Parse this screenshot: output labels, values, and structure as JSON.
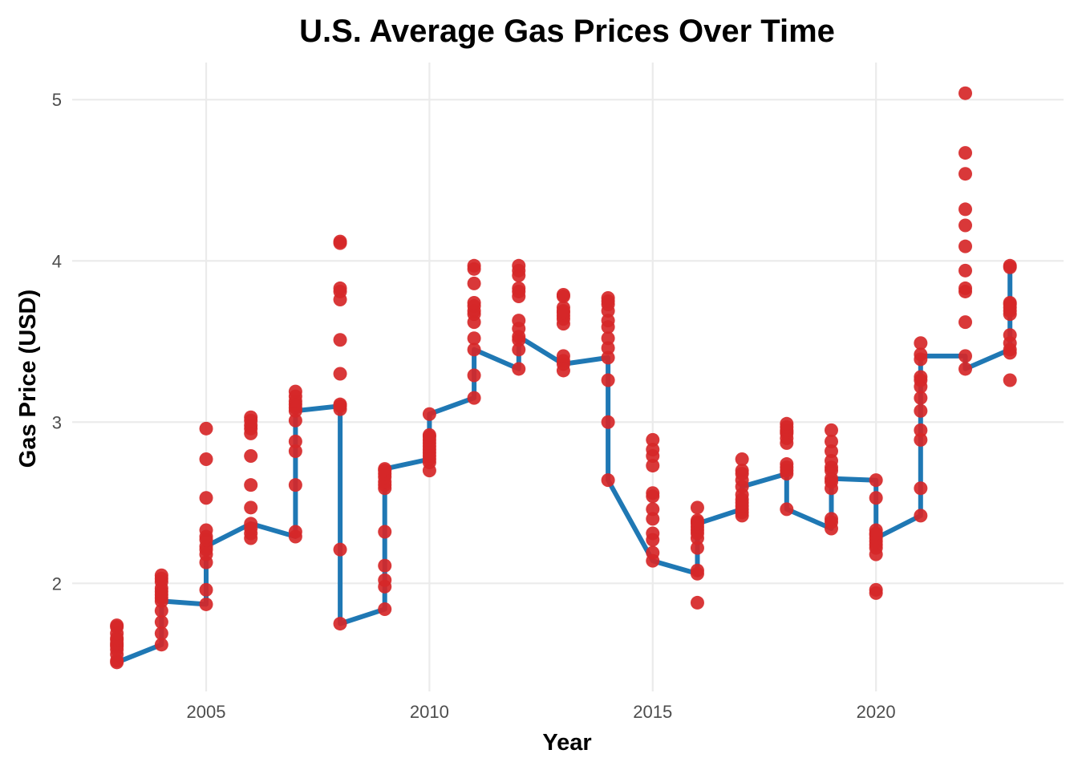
{
  "chart_data": {
    "type": "line",
    "title": "U.S. Average Gas Prices Over Time",
    "xlabel": "Year",
    "ylabel": "Gas Price (USD)",
    "xlim": [
      2002.0,
      2024.2
    ],
    "ylim": [
      1.33,
      5.23
    ],
    "xticks": [
      2005,
      2010,
      2015,
      2020
    ],
    "yticks": [
      2,
      3,
      4,
      5
    ],
    "grid": true,
    "legend": "none",
    "line_color": "#1f78b4",
    "point_color": "#d62728",
    "line_path": [
      [
        2003,
        1.51
      ],
      [
        2004,
        1.62
      ],
      [
        2004,
        1.89
      ],
      [
        2005,
        1.87
      ],
      [
        2005,
        2.23
      ],
      [
        2006,
        2.37
      ],
      [
        2007,
        2.29
      ],
      [
        2007,
        3.07
      ],
      [
        2008,
        3.1
      ],
      [
        2008,
        1.75
      ],
      [
        2009,
        1.84
      ],
      [
        2009,
        2.71
      ],
      [
        2010,
        2.77
      ],
      [
        2010,
        3.05
      ],
      [
        2011,
        3.15
      ],
      [
        2011,
        3.45
      ],
      [
        2012,
        3.33
      ],
      [
        2012,
        3.53
      ],
      [
        2013,
        3.36
      ],
      [
        2014,
        3.4
      ],
      [
        2014,
        2.64
      ],
      [
        2015,
        2.14
      ],
      [
        2016,
        2.06
      ],
      [
        2016,
        2.37
      ],
      [
        2017,
        2.46
      ],
      [
        2017,
        2.6
      ],
      [
        2018,
        2.68
      ],
      [
        2018,
        2.46
      ],
      [
        2019,
        2.34
      ],
      [
        2019,
        2.65
      ],
      [
        2020,
        2.64
      ],
      [
        2020,
        2.28
      ],
      [
        2021,
        2.42
      ],
      [
        2021,
        3.41
      ],
      [
        2022,
        3.41
      ],
      [
        2022,
        3.33
      ],
      [
        2023,
        3.45
      ],
      [
        2023,
        3.97
      ]
    ],
    "series": [
      {
        "x": 2003,
        "values": [
          1.51,
          1.52,
          1.56,
          1.59,
          1.61,
          1.62,
          1.63,
          1.65,
          1.66,
          1.69,
          1.73,
          1.74
        ]
      },
      {
        "x": 2004,
        "values": [
          1.62,
          1.69,
          1.76,
          1.83,
          1.89,
          1.91,
          1.93,
          1.95,
          1.97,
          2.01,
          2.03,
          2.05
        ]
      },
      {
        "x": 2005,
        "values": [
          1.87,
          1.96,
          2.13,
          2.18,
          2.21,
          2.23,
          2.27,
          2.29,
          2.33,
          2.53,
          2.77,
          2.96
        ]
      },
      {
        "x": 2006,
        "values": [
          2.28,
          2.31,
          2.34,
          2.37,
          2.47,
          2.61,
          2.79,
          2.93,
          2.96,
          2.98,
          3.01,
          3.03
        ]
      },
      {
        "x": 2007,
        "values": [
          2.29,
          2.32,
          2.61,
          2.82,
          2.88,
          3.01,
          3.07,
          3.09,
          3.11,
          3.13,
          3.16,
          3.19
        ]
      },
      {
        "x": 2008,
        "values": [
          1.75,
          2.21,
          3.08,
          3.1,
          3.11,
          3.3,
          3.51,
          3.76,
          3.81,
          3.83,
          4.11,
          4.12
        ]
      },
      {
        "x": 2009,
        "values": [
          1.84,
          1.98,
          2.02,
          2.11,
          2.32,
          2.59,
          2.61,
          2.63,
          2.66,
          2.68,
          2.7,
          2.71
        ]
      },
      {
        "x": 2010,
        "values": [
          2.7,
          2.75,
          2.77,
          2.79,
          2.81,
          2.83,
          2.85,
          2.87,
          2.89,
          2.91,
          2.92,
          3.05
        ]
      },
      {
        "x": 2011,
        "values": [
          3.15,
          3.29,
          3.45,
          3.52,
          3.62,
          3.67,
          3.69,
          3.72,
          3.74,
          3.86,
          3.95,
          3.97
        ]
      },
      {
        "x": 2012,
        "values": [
          3.33,
          3.45,
          3.51,
          3.53,
          3.58,
          3.63,
          3.78,
          3.81,
          3.83,
          3.91,
          3.94,
          3.97
        ]
      },
      {
        "x": 2013,
        "values": [
          3.32,
          3.36,
          3.38,
          3.41,
          3.61,
          3.64,
          3.66,
          3.68,
          3.69,
          3.71,
          3.78,
          3.79
        ]
      },
      {
        "x": 2014,
        "values": [
          2.64,
          3.0,
          3.26,
          3.4,
          3.46,
          3.52,
          3.59,
          3.63,
          3.69,
          3.73,
          3.75,
          3.77
        ]
      },
      {
        "x": 2015,
        "values": [
          2.14,
          2.19,
          2.27,
          2.31,
          2.4,
          2.46,
          2.54,
          2.56,
          2.73,
          2.79,
          2.83,
          2.89
        ]
      },
      {
        "x": 2016,
        "values": [
          1.88,
          2.06,
          2.08,
          2.22,
          2.28,
          2.31,
          2.33,
          2.35,
          2.37,
          2.38,
          2.39,
          2.47
        ]
      },
      {
        "x": 2017,
        "values": [
          2.42,
          2.44,
          2.46,
          2.48,
          2.5,
          2.52,
          2.55,
          2.6,
          2.64,
          2.68,
          2.7,
          2.77
        ]
      },
      {
        "x": 2018,
        "values": [
          2.46,
          2.68,
          2.7,
          2.72,
          2.74,
          2.87,
          2.9,
          2.93,
          2.94,
          2.95,
          2.97,
          2.99
        ]
      },
      {
        "x": 2019,
        "values": [
          2.34,
          2.38,
          2.4,
          2.59,
          2.63,
          2.65,
          2.7,
          2.72,
          2.76,
          2.82,
          2.88,
          2.95
        ]
      },
      {
        "x": 2020,
        "values": [
          1.94,
          1.96,
          2.18,
          2.22,
          2.24,
          2.26,
          2.28,
          2.3,
          2.31,
          2.33,
          2.53,
          2.64
        ]
      },
      {
        "x": 2021,
        "values": [
          2.42,
          2.59,
          2.89,
          2.95,
          3.07,
          3.15,
          3.22,
          3.26,
          3.28,
          3.39,
          3.42,
          3.49
        ]
      },
      {
        "x": 2022,
        "values": [
          3.33,
          3.41,
          3.62,
          3.81,
          3.83,
          3.94,
          4.09,
          4.22,
          4.32,
          4.54,
          4.67,
          5.04
        ]
      },
      {
        "x": 2023,
        "values": [
          3.26,
          3.43,
          3.45,
          3.49,
          3.54,
          3.67,
          3.69,
          3.71,
          3.73,
          3.74,
          3.96,
          3.97
        ]
      }
    ]
  }
}
